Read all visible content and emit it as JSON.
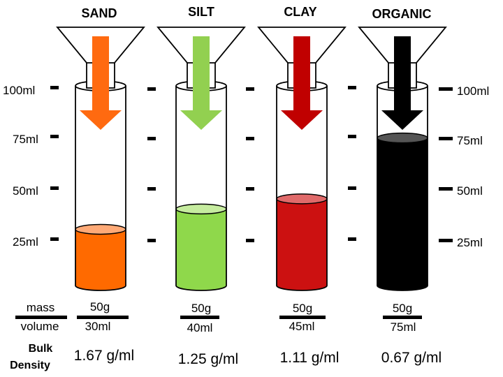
{
  "columns": [
    {
      "title": "SAND",
      "mass": "50g",
      "volume": "30ml",
      "density": "1.67 g/ml",
      "fill_ml": 30,
      "liquid_color": "#ff6a00",
      "top_color": "#ffaa77",
      "arrow_color": "#ff6a10"
    },
    {
      "title": "SILT",
      "mass": "50g",
      "volume": "40ml",
      "density": "1.25 g/ml",
      "fill_ml": 40,
      "liquid_color": "#8fd84b",
      "top_color": "#c6ec9f",
      "arrow_color": "#92d050"
    },
    {
      "title": "CLAY",
      "mass": "50g",
      "volume": "45ml",
      "density": "1.11 g/ml",
      "fill_ml": 45,
      "liquid_color": "#cc1111",
      "top_color": "#e06a6a",
      "arrow_color": "#c00000"
    },
    {
      "title": "ORGANIC",
      "mass": "50g",
      "volume": "75ml",
      "density": "0.67 g/ml",
      "fill_ml": 75,
      "liquid_color": "#000000",
      "top_color": "#555555",
      "arrow_color": "#000000"
    }
  ],
  "scale": {
    "left_labels": [
      "100ml",
      "75ml",
      "50ml",
      "25ml"
    ],
    "right_labels": [
      "100ml",
      "75ml",
      "50ml",
      "25ml"
    ]
  },
  "legend": {
    "mass_label": "mass",
    "volume_label": "volume",
    "bulk_density_label_line1": "Bulk",
    "bulk_density_label_line2": "Density"
  }
}
